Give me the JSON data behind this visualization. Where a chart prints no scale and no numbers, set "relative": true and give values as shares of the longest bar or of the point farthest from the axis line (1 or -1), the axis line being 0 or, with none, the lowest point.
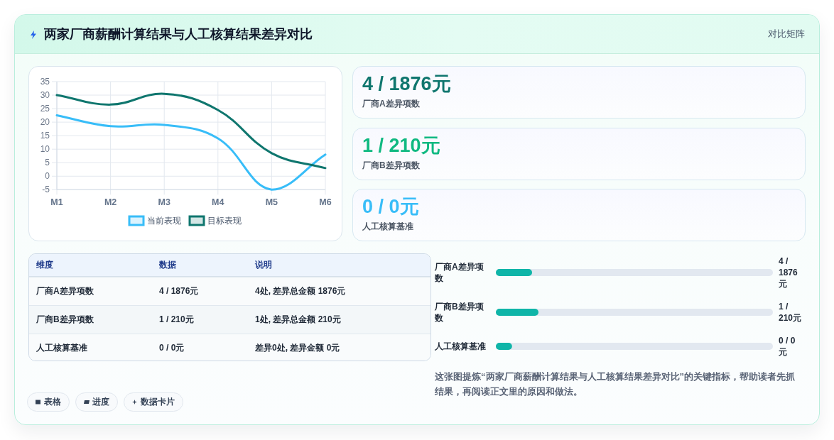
{
  "chart_data": [
    {
      "type": "other",
      "title": "两家厂商薪酬计算结果与人工核算结果差异对比",
      "subtitle": "对比矩阵"
    },
    {
      "type": "line",
      "categories": [
        "M1",
        "M2",
        "M3",
        "M4",
        "M5",
        "M6"
      ],
      "series": [
        {
          "name": "当前表现",
          "color": "#38bdf8",
          "values": [
            22.5,
            18.5,
            19,
            14,
            -5,
            8
          ]
        },
        {
          "name": "目标表现",
          "color": "#0f766e",
          "values": [
            30,
            26.5,
            30.5,
            24.5,
            8.5,
            3
          ]
        }
      ],
      "ylim": [
        -5,
        35
      ],
      "yticks": [
        -5,
        0,
        5,
        10,
        15,
        20,
        25,
        30,
        35
      ],
      "grid": true,
      "legend": "bottom"
    },
    {
      "type": "other",
      "categories": [
        "厂商A差异项数",
        "厂商B差异项数",
        "人工核算基准"
      ],
      "value_labels": [
        "4 / 1876元",
        "1 / 210元",
        "0 / 0元"
      ]
    },
    {
      "type": "other",
      "annotations": [
        "维度",
        "数据",
        "说明",
        "厂商A差异项数",
        "4 / 1876元",
        "4处, 差异总金额 1876元",
        "厂商B差异项数",
        "1 / 210元",
        "1处, 差异总金额 210元",
        "人工核算基准",
        "0 / 0元",
        "差异0处, 差异金额 0元"
      ]
    },
    {
      "type": "bar",
      "orientation": "horizontal",
      "relative": true,
      "categories": [
        "厂商A差异项数",
        "厂商B差异项数",
        "人工核算基准"
      ],
      "values": [
        0.85,
        1,
        0.38
      ],
      "color": "#0fb5a8",
      "annotations": [
        "4 / 1876元",
        "1 / 210元",
        "0 / 0元",
        "这张图提炼“两家厂商薪酬计算结果与人工核算结果差异对比”的关键指标，帮助读者先抓结果，再阅读正文里的原因和做法。"
      ]
    },
    {
      "type": "other",
      "annotations": [
        "表格",
        "进度",
        "数据卡片"
      ]
    }
  ]
}
